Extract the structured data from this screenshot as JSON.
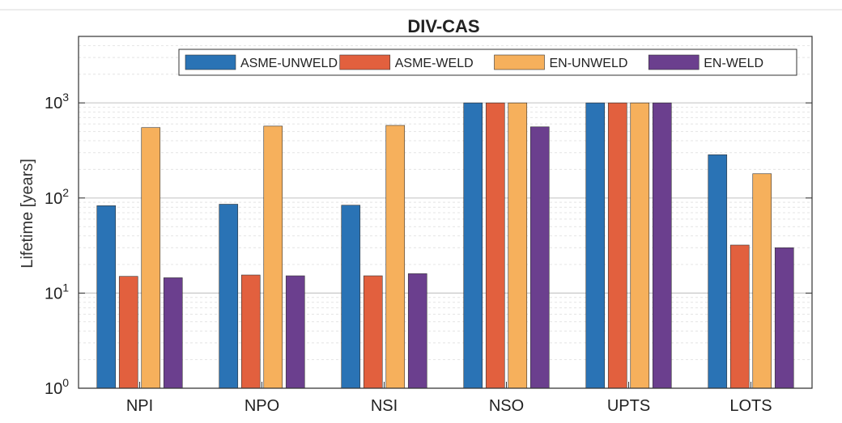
{
  "chart_data": {
    "type": "bar",
    "title": "DIV-CAS",
    "xlabel": "",
    "ylabel": "Lifetime [years]",
    "yscale": "log",
    "ylim": [
      1,
      5000
    ],
    "ytick_labels": [
      {
        "base": "10",
        "exp": "0"
      },
      {
        "base": "10",
        "exp": "1"
      },
      {
        "base": "10",
        "exp": "2"
      },
      {
        "base": "10",
        "exp": "3"
      }
    ],
    "ytick_values": [
      1,
      10,
      100,
      1000
    ],
    "grid": true,
    "legend_position": "top-right",
    "categories": [
      "NPI",
      "NPO",
      "NSI",
      "NSO",
      "UPTS",
      "LOTS"
    ],
    "series": [
      {
        "name": "ASME-UNWELD",
        "color": "#2a73b5",
        "values": [
          83,
          86,
          84,
          1000,
          1000,
          285
        ]
      },
      {
        "name": "ASME-WELD",
        "color": "#e2603e",
        "values": [
          15,
          15.5,
          15.2,
          1000,
          1000,
          32
        ]
      },
      {
        "name": "EN-UNWELD",
        "color": "#f6b05c",
        "values": [
          550,
          570,
          580,
          1000,
          1000,
          180
        ]
      },
      {
        "name": "EN-WELD",
        "color": "#6b3f8e",
        "values": [
          14.5,
          15.2,
          16,
          560,
          1000,
          30
        ]
      }
    ]
  }
}
